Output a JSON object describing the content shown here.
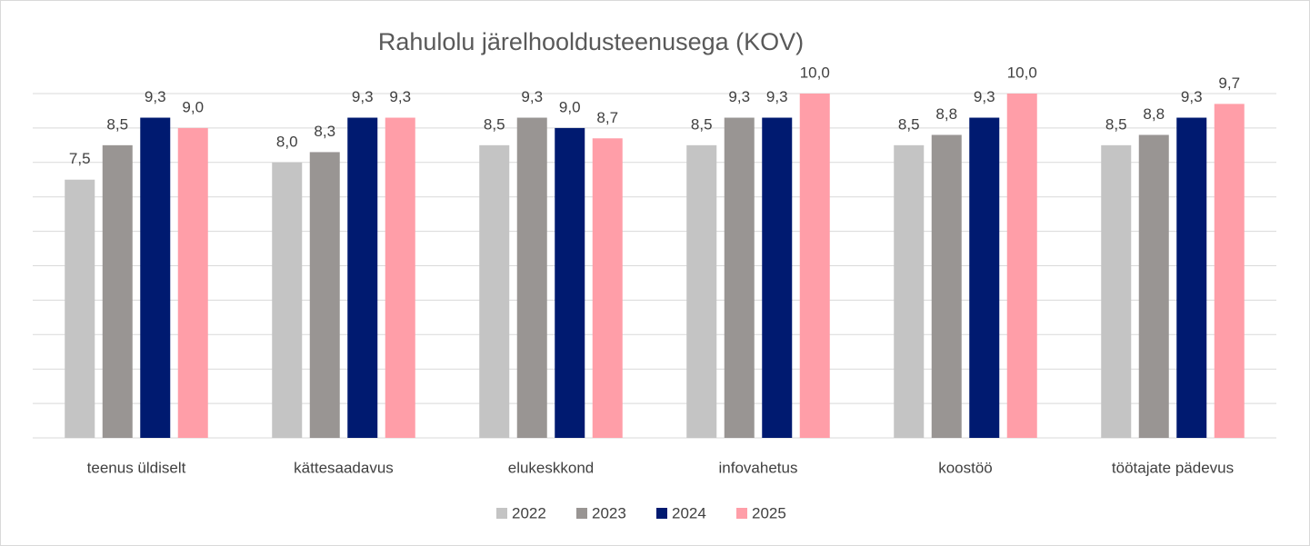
{
  "chart_data": {
    "type": "bar",
    "title": "Rahulolu järelhooldusteenusega (KOV)",
    "categories": [
      "teenus üldiselt",
      "kättesaadavus",
      "elukeskkond",
      "infovahetus",
      "koostöö",
      "töötajate pädevus"
    ],
    "series": [
      {
        "name": "2022",
        "color": "#c4c4c4",
        "values": [
          7.5,
          8.0,
          8.5,
          8.5,
          8.5,
          8.5
        ],
        "value_labels": [
          "7,5",
          "8,0",
          "8,5",
          "8,5",
          "8,5",
          "8,5"
        ]
      },
      {
        "name": "2023",
        "color": "#999593",
        "values": [
          8.5,
          8.3,
          9.3,
          9.3,
          8.8,
          8.8
        ],
        "value_labels": [
          "8,5",
          "8,3",
          "9,3",
          "9,3",
          "8,8",
          "8,8"
        ]
      },
      {
        "name": "2024",
        "color": "#001a70",
        "values": [
          9.3,
          9.3,
          9.0,
          9.3,
          9.3,
          9.3
        ],
        "value_labels": [
          "9,3",
          "9,3",
          "9,0",
          "9,3",
          "9,3",
          "9,3"
        ]
      },
      {
        "name": "2025",
        "color": "#ff9ea8",
        "values": [
          9.0,
          9.3,
          8.7,
          10.0,
          10.0,
          9.7
        ],
        "value_labels": [
          "9,0",
          "9,3",
          "8,7",
          "10,0",
          "10,0",
          "9,7"
        ]
      }
    ],
    "ylim": [
      0,
      10
    ],
    "yticks": [
      0,
      1,
      2,
      3,
      4,
      5,
      6,
      7,
      8,
      9,
      10
    ],
    "grid": true,
    "legend": "bottom"
  }
}
